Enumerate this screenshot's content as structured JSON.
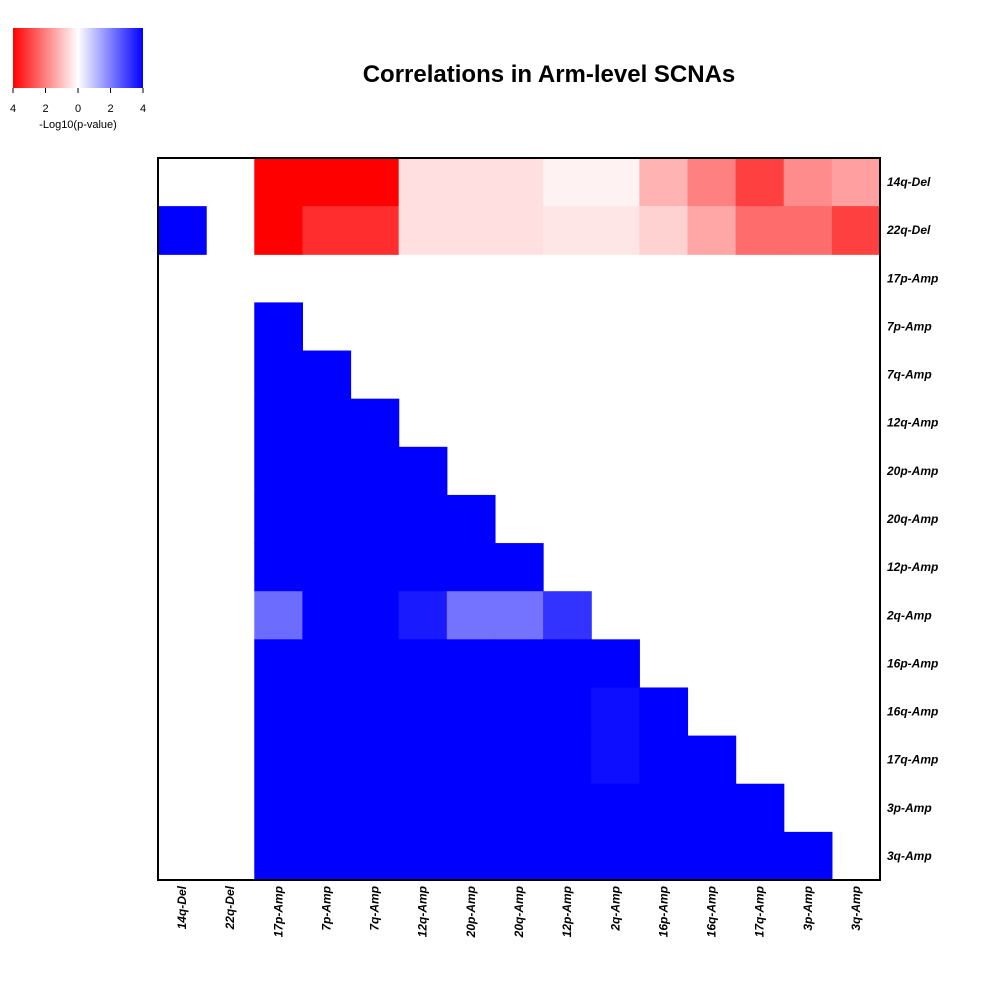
{
  "chart_data": {
    "type": "heatmap",
    "title": "Correlations in Arm-level SCNAs",
    "rows": [
      "14q-Del",
      "22q-Del",
      "17p-Amp",
      "7p-Amp",
      "7q-Amp",
      "12q-Amp",
      "20p-Amp",
      "20q-Amp",
      "12p-Amp",
      "2q-Amp",
      "16p-Amp",
      "16q-Amp",
      "17q-Amp",
      "3p-Amp",
      "3q-Amp"
    ],
    "columns": [
      "14q-Del",
      "22q-Del",
      "17p-Amp",
      "7p-Amp",
      "7q-Amp",
      "12q-Amp",
      "20p-Amp",
      "20q-Amp",
      "12p-Amp",
      "2q-Amp",
      "16p-Amp",
      "16q-Amp",
      "17q-Amp",
      "3p-Amp",
      "3q-Amp"
    ],
    "value_note": "signed -Log10(p-value): negative = red (anti-correlation), positive = blue (co-occurrence); null = blank",
    "values": [
      [
        null,
        null,
        -4,
        -4,
        -4,
        -0.5,
        -0.5,
        -0.5,
        -0.2,
        -0.2,
        -1.2,
        -2,
        -3,
        -1.8,
        -1.5
      ],
      [
        4,
        null,
        -4,
        -3.3,
        -3.3,
        -0.5,
        -0.5,
        -0.5,
        -0.4,
        -0.4,
        -0.7,
        -1.4,
        -2.3,
        -2.3,
        -3
      ],
      [
        null,
        null,
        null,
        null,
        null,
        null,
        null,
        null,
        null,
        null,
        null,
        null,
        null,
        null,
        null
      ],
      [
        null,
        null,
        4,
        null,
        null,
        null,
        null,
        null,
        null,
        null,
        null,
        null,
        null,
        null,
        null
      ],
      [
        null,
        null,
        4,
        4,
        null,
        null,
        null,
        null,
        null,
        null,
        null,
        null,
        null,
        null,
        null
      ],
      [
        null,
        null,
        4,
        4,
        4,
        null,
        null,
        null,
        null,
        null,
        null,
        null,
        null,
        null,
        null
      ],
      [
        null,
        null,
        4,
        4,
        4,
        4,
        null,
        null,
        null,
        null,
        null,
        null,
        null,
        null,
        null
      ],
      [
        null,
        null,
        4,
        4,
        4,
        4,
        4,
        null,
        null,
        null,
        null,
        null,
        null,
        null,
        null
      ],
      [
        null,
        null,
        4,
        4,
        4,
        4,
        4,
        4,
        null,
        null,
        null,
        null,
        null,
        null,
        null
      ],
      [
        null,
        null,
        2.3,
        4,
        4,
        3.6,
        2.2,
        2.2,
        3.2,
        null,
        null,
        null,
        null,
        null,
        null
      ],
      [
        null,
        null,
        4,
        4,
        4,
        4,
        4,
        4,
        4,
        4,
        null,
        null,
        null,
        null,
        null
      ],
      [
        null,
        null,
        4,
        4,
        4,
        4,
        4,
        4,
        4,
        3.8,
        4,
        null,
        null,
        null,
        null
      ],
      [
        null,
        null,
        4,
        4,
        4,
        4,
        4,
        4,
        4,
        3.8,
        4,
        4,
        null,
        null,
        null
      ],
      [
        null,
        null,
        4,
        4,
        4,
        4,
        4,
        4,
        4,
        4,
        4,
        4,
        4,
        null,
        null
      ],
      [
        null,
        null,
        4,
        4,
        4,
        4,
        4,
        4,
        4,
        4,
        4,
        4,
        4,
        4,
        null
      ]
    ],
    "colorscale": {
      "min": -4,
      "max": 4,
      "negative_color": "#ff0000",
      "mid_color": "#ffffff",
      "positive_color": "#0000ff"
    },
    "legend": {
      "title": "-Log10(p-value)",
      "ticks": [
        {
          "value": -4,
          "label": "4"
        },
        {
          "value": -2,
          "label": "2"
        },
        {
          "value": 0,
          "label": "0"
        },
        {
          "value": 2,
          "label": "2"
        },
        {
          "value": 4,
          "label": "4"
        }
      ],
      "placement": "top-left"
    },
    "grid": false
  }
}
